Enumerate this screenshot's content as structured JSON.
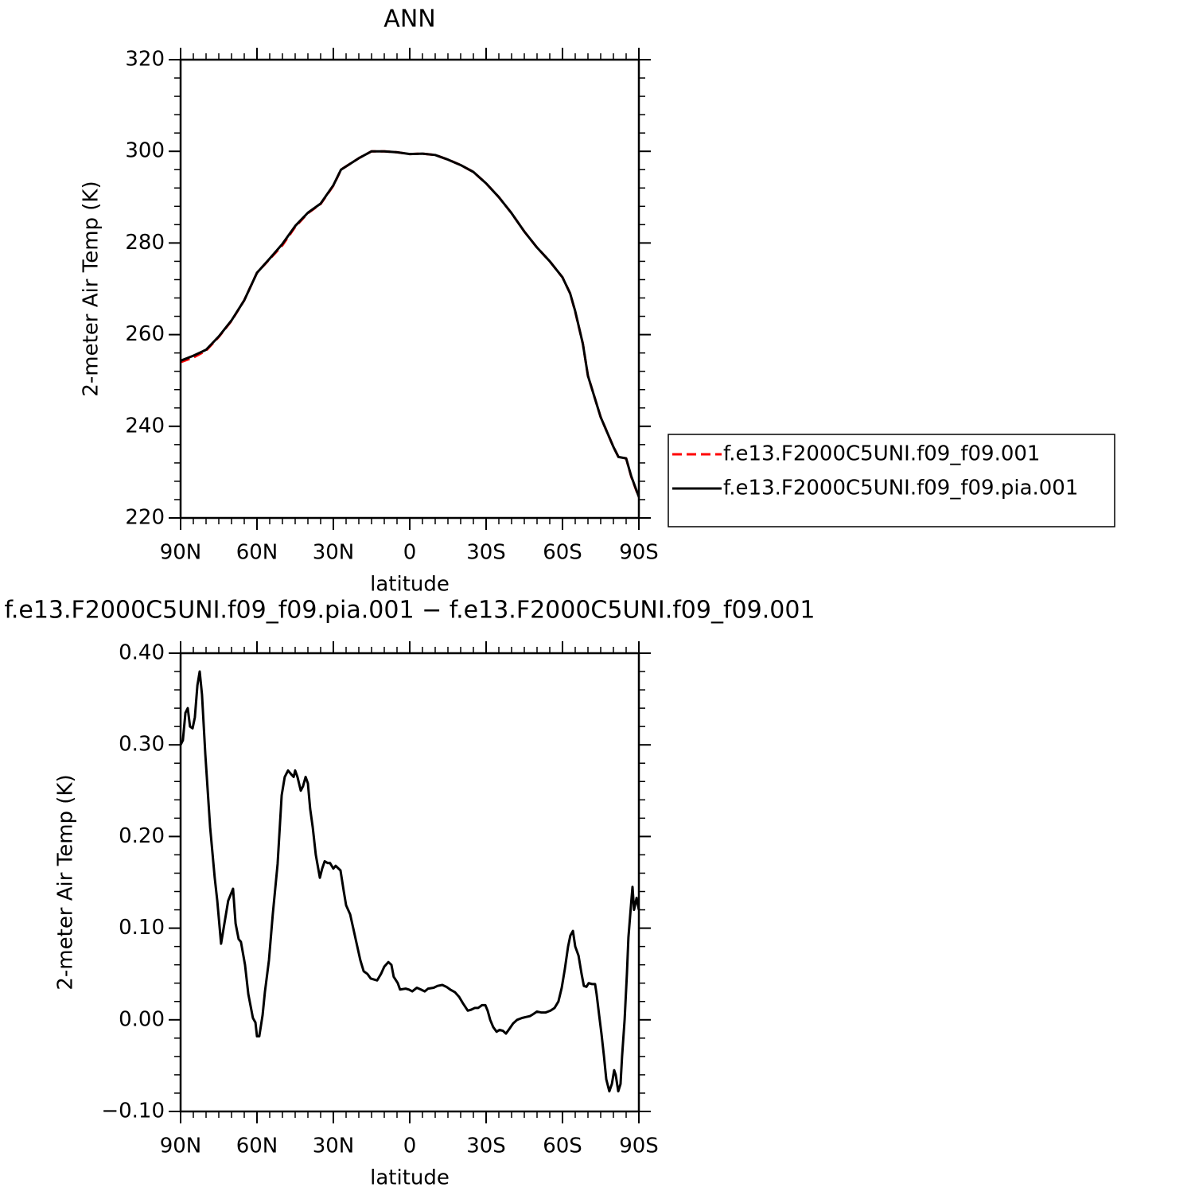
{
  "chart_data": [
    {
      "type": "line",
      "title": "ANN",
      "xlabel": "latitude",
      "ylabel": "2-meter Air Temp (K)",
      "x": [
        90,
        85,
        80,
        75,
        70,
        65,
        60,
        55,
        50,
        45,
        40,
        35,
        30,
        27,
        20,
        15,
        10,
        5,
        0,
        -5,
        -10,
        -15,
        -20,
        -25,
        -30,
        -35,
        -40,
        -45,
        -50,
        -55,
        -60,
        -63,
        -65,
        -68,
        -70,
        -75,
        -80,
        -82,
        -85,
        -87,
        -90
      ],
      "series": [
        {
          "name": "f.e13.F2000C5UNI.f09_f09.001",
          "color": "#ff0000",
          "dash": "dashed",
          "values": [
            254,
            255,
            256.5,
            259.5,
            263,
            267.5,
            273.5,
            276.5,
            279.5,
            283.5,
            286.5,
            288.5,
            292.5,
            296,
            298.5,
            300,
            300,
            299.8,
            299.4,
            299.5,
            299.2,
            298.2,
            297,
            295.5,
            293,
            290,
            286.5,
            282.5,
            279,
            276,
            272.5,
            269,
            265,
            258,
            251,
            242,
            235.5,
            233.3,
            233,
            229,
            224.5
          ]
        },
        {
          "name": "f.e13.F2000C5UNI.f09_f09.pia.001",
          "color": "#000000",
          "dash": "solid",
          "values": [
            254.3,
            255.4,
            256.7,
            259.6,
            263.1,
            267.5,
            273.5,
            276.6,
            279.8,
            283.7,
            286.6,
            288.6,
            292.6,
            296,
            298.5,
            300,
            300,
            299.8,
            299.4,
            299.5,
            299.2,
            298.2,
            297,
            295.5,
            293,
            290,
            286.5,
            282.5,
            279,
            276,
            272.5,
            269,
            265.1,
            258,
            251,
            242,
            235.5,
            233.3,
            233,
            229.1,
            224.6
          ]
        }
      ],
      "xlim": [
        90,
        -90
      ],
      "xticks": [
        {
          "value": 90,
          "label": "90N"
        },
        {
          "value": 60,
          "label": "60N"
        },
        {
          "value": 30,
          "label": "30N"
        },
        0,
        {
          "value": -30,
          "label": "30S"
        },
        {
          "value": -60,
          "label": "60S"
        },
        {
          "value": -90,
          "label": "90S"
        }
      ],
      "ylim": [
        220,
        320
      ],
      "yticks": [
        220,
        240,
        260,
        280,
        300,
        320
      ],
      "legend": "right"
    },
    {
      "type": "line",
      "title": "f.e13.F2000C5UNI.f09_f09.pia.001 − f.e13.F2000C5UNI.f09_f09.001",
      "xlabel": "latitude",
      "ylabel": "2-meter Air Temp (K)",
      "x": [
        90,
        89.1,
        88.1,
        87.2,
        86.3,
        85.3,
        84.4,
        83.4,
        82.5,
        81.6,
        80.3,
        78.4,
        76.6,
        75.6,
        74.1,
        72.8,
        71.3,
        69.4,
        68.4,
        67.2,
        66.3,
        64.7,
        63.4,
        61.6,
        60.6,
        60,
        59.1,
        57.8,
        56.9,
        55.3,
        53.8,
        51.9,
        50.3,
        49.1,
        47.8,
        46.6,
        45.6,
        45,
        44.1,
        42.8,
        41.9,
        40.9,
        40,
        39.1,
        38.1,
        36.9,
        35.3,
        34.4,
        33.4,
        32.2,
        31.3,
        30,
        29.1,
        27.2,
        25.9,
        25,
        23.4,
        22.2,
        20.6,
        19.4,
        18.1,
        16.6,
        15.3,
        14.1,
        12.8,
        11.3,
        10,
        8.4,
        7.2,
        6.3,
        4.7,
        3.8,
        1.6,
        0.3,
        -1,
        -2.8,
        -4.4,
        -5.9,
        -7.2,
        -9.4,
        -10.9,
        -12.8,
        -14.4,
        -15.9,
        -17.8,
        -19.4,
        -20.9,
        -22.8,
        -24.1,
        -25.6,
        -26.9,
        -28.4,
        -29.7,
        -30.6,
        -31.6,
        -32.8,
        -34.1,
        -35.3,
        -36.6,
        -37.8,
        -39.1,
        -40.6,
        -42.2,
        -44.1,
        -45.6,
        -47.2,
        -48.4,
        -50,
        -51.6,
        -53.4,
        -55.3,
        -56.9,
        -58.4,
        -59.7,
        -60.9,
        -62.2,
        -63.1,
        -64.1,
        -65,
        -66.3,
        -67.5,
        -68.4,
        -69.4,
        -70.3,
        -71.6,
        -72.8,
        -73.4,
        -74.4,
        -75.3,
        -76.3,
        -77.2,
        -78.4,
        -79.4,
        -80.3,
        -80.9,
        -81.9,
        -82.8,
        -83.4,
        -84.4,
        -85.3,
        -85.9,
        -86.9,
        -87.5,
        -88.1,
        -89.1,
        -90
      ],
      "series": [
        {
          "color": "#000000",
          "dash": "solid",
          "values": [
            0.3,
            0.305,
            0.335,
            0.34,
            0.32,
            0.318,
            0.33,
            0.365,
            0.38,
            0.355,
            0.29,
            0.21,
            0.155,
            0.13,
            0.083,
            0.105,
            0.13,
            0.143,
            0.105,
            0.088,
            0.085,
            0.06,
            0.028,
            0.002,
            -0.003,
            -0.018,
            -0.018,
            0.005,
            0.03,
            0.065,
            0.115,
            0.17,
            0.245,
            0.265,
            0.272,
            0.268,
            0.265,
            0.272,
            0.265,
            0.25,
            0.255,
            0.265,
            0.258,
            0.23,
            0.21,
            0.18,
            0.155,
            0.165,
            0.173,
            0.171,
            0.171,
            0.165,
            0.168,
            0.163,
            0.14,
            0.125,
            0.115,
            0.1,
            0.08,
            0.065,
            0.053,
            0.05,
            0.045,
            0.044,
            0.043,
            0.05,
            0.058,
            0.063,
            0.06,
            0.047,
            0.04,
            0.033,
            0.034,
            0.033,
            0.031,
            0.035,
            0.033,
            0.031,
            0.034,
            0.035,
            0.037,
            0.038,
            0.036,
            0.033,
            0.03,
            0.025,
            0.018,
            0.01,
            0.011,
            0.013,
            0.013,
            0.016,
            0.016,
            0.01,
            0.0,
            -0.008,
            -0.013,
            -0.011,
            -0.012,
            -0.015,
            -0.01,
            -0.004,
            0.0,
            0.002,
            0.003,
            0.004,
            0.006,
            0.009,
            0.008,
            0.008,
            0.01,
            0.013,
            0.02,
            0.035,
            0.055,
            0.08,
            0.092,
            0.097,
            0.08,
            0.07,
            0.05,
            0.037,
            0.036,
            0.04,
            0.039,
            0.039,
            0.028,
            0.005,
            -0.015,
            -0.04,
            -0.065,
            -0.078,
            -0.07,
            -0.055,
            -0.06,
            -0.078,
            -0.07,
            -0.04,
            0.0,
            0.05,
            0.09,
            0.125,
            0.145,
            0.12,
            0.133,
            0.12
          ]
        }
      ],
      "xlim": [
        90,
        -90
      ],
      "xticks": [
        {
          "value": 90,
          "label": "90N"
        },
        {
          "value": 60,
          "label": "60N"
        },
        {
          "value": 30,
          "label": "30N"
        },
        0,
        {
          "value": -30,
          "label": "30S"
        },
        {
          "value": -60,
          "label": "60S"
        },
        {
          "value": -90,
          "label": "90S"
        }
      ],
      "ylim": [
        -0.1,
        0.4
      ],
      "yticks": [
        {
          "value": -0.1,
          "label": "−0.10"
        },
        {
          "value": 0,
          "label": "0.00"
        },
        {
          "value": 0.1,
          "label": "0.10"
        },
        {
          "value": 0.2,
          "label": "0.20"
        },
        {
          "value": 0.3,
          "label": "0.30"
        },
        {
          "value": 0.4,
          "label": "0.40"
        }
      ]
    }
  ]
}
